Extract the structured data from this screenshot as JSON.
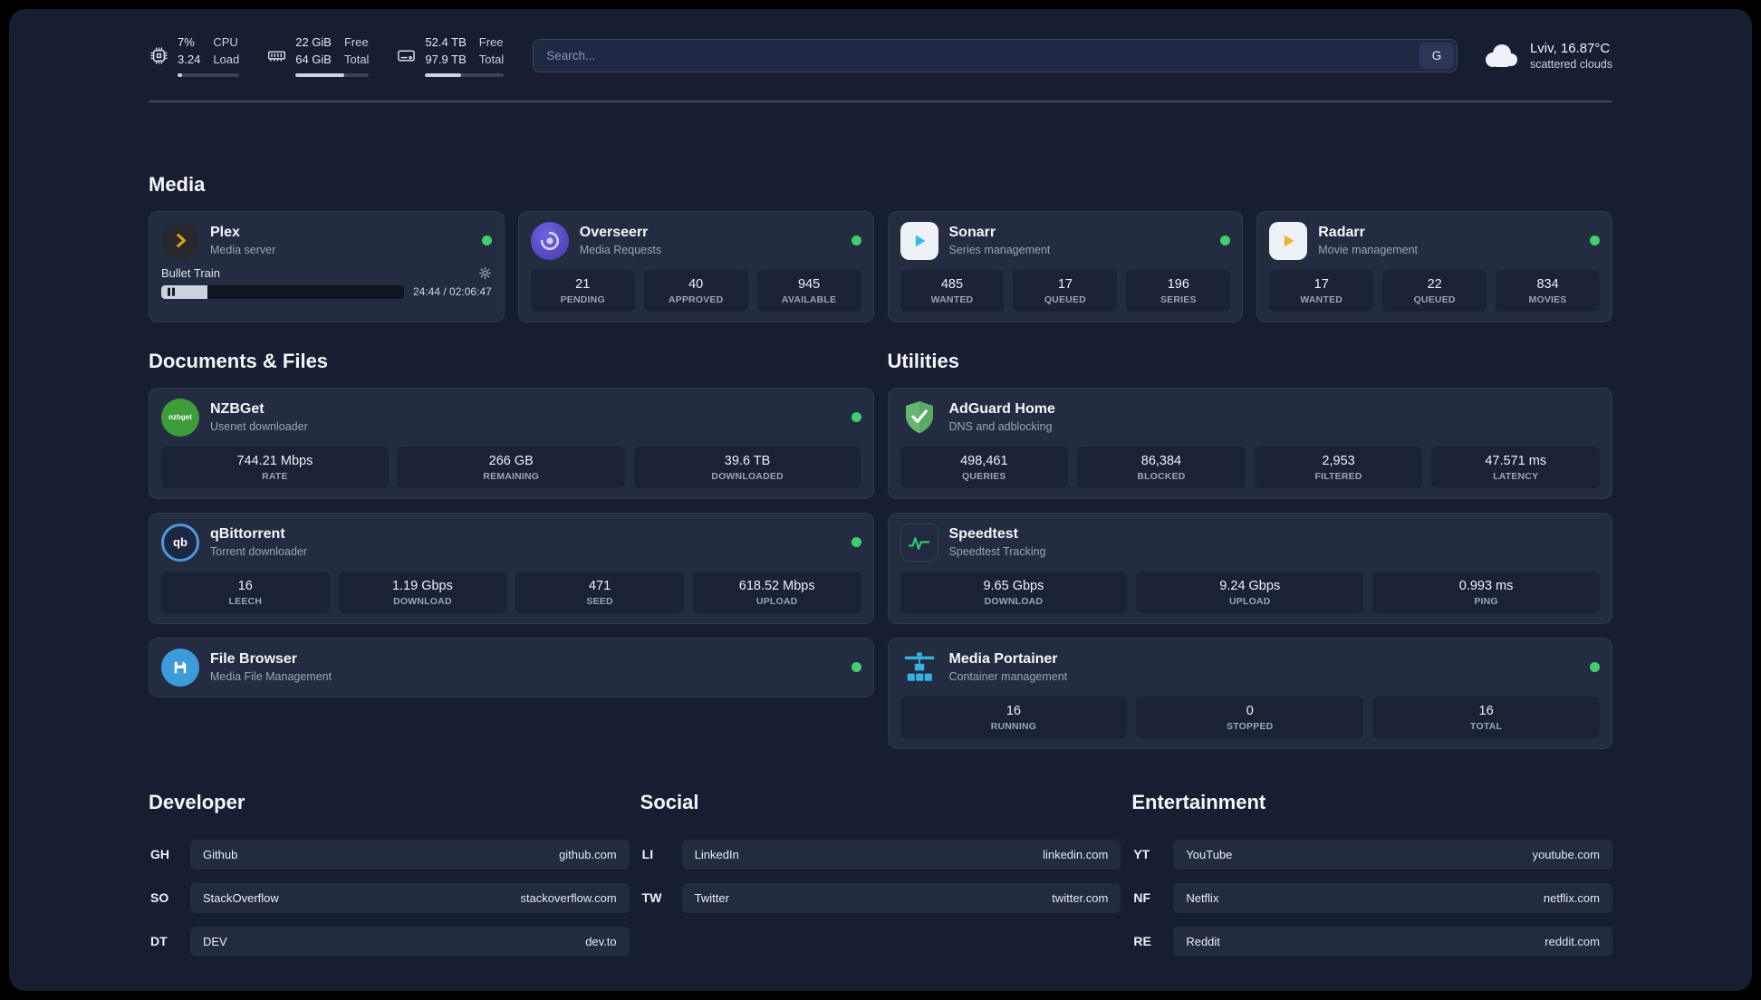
{
  "colors": {
    "status_online": "#3fcf6e"
  },
  "header": {
    "cpu": {
      "percent": "7%",
      "load": "3.24",
      "label_top": "CPU",
      "label_bottom": "Load",
      "progress": 7
    },
    "ram": {
      "free": "22 GiB",
      "free_label": "Free",
      "total": "64 GiB",
      "total_label": "Total",
      "progress": 66
    },
    "disk": {
      "free": "52.4 TB",
      "free_label": "Free",
      "total": "97.9 TB",
      "total_label": "Total",
      "progress": 46
    },
    "search": {
      "placeholder": "Search...",
      "engine_label": "G"
    },
    "weather": {
      "location": "Lviv, 16.87°C",
      "condition": "scattered clouds"
    }
  },
  "sections": {
    "media": {
      "title": "Media",
      "apps": [
        {
          "name": "Plex",
          "subtitle": "Media server",
          "player": {
            "track": "Bullet Train",
            "time": "24:44 / 02:06:47",
            "progress": 19
          }
        },
        {
          "name": "Overseerr",
          "subtitle": "Media Requests",
          "stats": [
            {
              "value": "21",
              "label": "PENDING"
            },
            {
              "value": "40",
              "label": "APPROVED"
            },
            {
              "value": "945",
              "label": "AVAILABLE"
            }
          ]
        },
        {
          "name": "Sonarr",
          "subtitle": "Series management",
          "stats": [
            {
              "value": "485",
              "label": "WANTED"
            },
            {
              "value": "17",
              "label": "QUEUED"
            },
            {
              "value": "196",
              "label": "SERIES"
            }
          ]
        },
        {
          "name": "Radarr",
          "subtitle": "Movie management",
          "stats": [
            {
              "value": "17",
              "label": "WANTED"
            },
            {
              "value": "22",
              "label": "QUEUED"
            },
            {
              "value": "834",
              "label": "MOVIES"
            }
          ]
        }
      ]
    },
    "documents": {
      "title": "Documents & Files",
      "apps": [
        {
          "name": "NZBGet",
          "subtitle": "Usenet downloader",
          "icon_text": "nzbget",
          "stats": [
            {
              "value": "744.21 Mbps",
              "label": "RATE"
            },
            {
              "value": "266 GB",
              "label": "REMAINING"
            },
            {
              "value": "39.6 TB",
              "label": "DOWNLOADED"
            }
          ]
        },
        {
          "name": "qBittorrent",
          "subtitle": "Torrent downloader",
          "icon_text": "qb",
          "stats": [
            {
              "value": "16",
              "label": "LEECH"
            },
            {
              "value": "1.19 Gbps",
              "label": "DOWNLOAD"
            },
            {
              "value": "471",
              "label": "SEED"
            },
            {
              "value": "618.52 Mbps",
              "label": "UPLOAD"
            }
          ]
        },
        {
          "name": "File Browser",
          "subtitle": "Media File Management"
        }
      ]
    },
    "utilities": {
      "title": "Utilities",
      "apps": [
        {
          "name": "AdGuard Home",
          "subtitle": "DNS and adblocking",
          "stats": [
            {
              "value": "498,461",
              "label": "QUERIES"
            },
            {
              "value": "86,384",
              "label": "BLOCKED"
            },
            {
              "value": "2,953",
              "label": "FILTERED"
            },
            {
              "value": "47.571 ms",
              "label": "LATENCY"
            }
          ]
        },
        {
          "name": "Speedtest",
          "subtitle": "Speedtest Tracking",
          "stats": [
            {
              "value": "9.65 Gbps",
              "label": "DOWNLOAD"
            },
            {
              "value": "9.24 Gbps",
              "label": "UPLOAD"
            },
            {
              "value": "0.993 ms",
              "label": "PING"
            }
          ]
        },
        {
          "name": "Media Portainer",
          "subtitle": "Container management",
          "stats": [
            {
              "value": "16",
              "label": "RUNNING"
            },
            {
              "value": "0",
              "label": "STOPPED"
            },
            {
              "value": "16",
              "label": "TOTAL"
            }
          ]
        }
      ]
    }
  },
  "bookmarks": [
    {
      "title": "Developer",
      "links": [
        {
          "abbr": "GH",
          "name": "Github",
          "url": "github.com"
        },
        {
          "abbr": "SO",
          "name": "StackOverflow",
          "url": "stackoverflow.com"
        },
        {
          "abbr": "DT",
          "name": "DEV",
          "url": "dev.to"
        }
      ]
    },
    {
      "title": "Social",
      "links": [
        {
          "abbr": "LI",
          "name": "LinkedIn",
          "url": "linkedin.com"
        },
        {
          "abbr": "TW",
          "name": "Twitter",
          "url": "twitter.com"
        }
      ]
    },
    {
      "title": "Entertainment",
      "links": [
        {
          "abbr": "YT",
          "name": "YouTube",
          "url": "youtube.com"
        },
        {
          "abbr": "NF",
          "name": "Netflix",
          "url": "netflix.com"
        },
        {
          "abbr": "RE",
          "name": "Reddit",
          "url": "reddit.com"
        }
      ]
    }
  ]
}
